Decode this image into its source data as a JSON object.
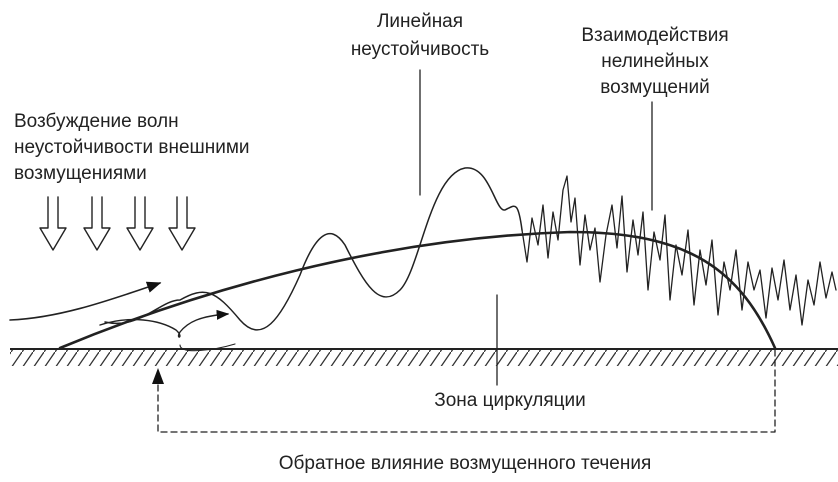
{
  "labels": {
    "linear_instability": [
      "Линейная",
      "неустойчивость"
    ],
    "nonlinear_interaction": [
      "Взаимодействия",
      "нелинейных",
      "возмущений"
    ],
    "external_excitation": [
      "Возбуждение волн",
      "неустойчивости внешними",
      "возмущениями"
    ],
    "circulation_zone": "Зона циркуляции",
    "feedback": "Обратное влияние возмущенного течения"
  }
}
